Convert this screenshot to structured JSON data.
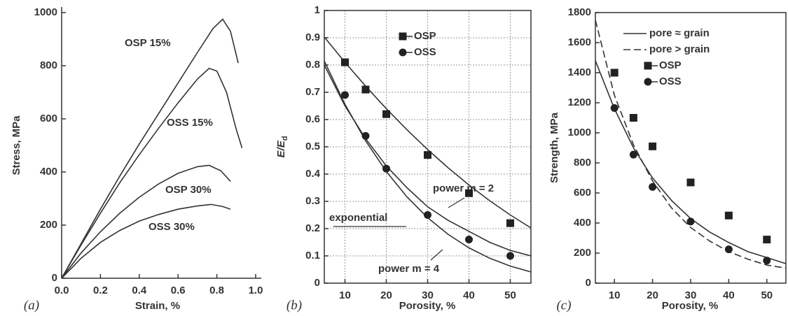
{
  "chart_data": [
    {
      "type": "line",
      "xlabel": "Strain, %",
      "ylabel": "Stress, MPa",
      "panel_label": "(a)",
      "xlim": [
        0,
        1
      ],
      "ylim": [
        0,
        1000
      ],
      "xticks": [
        {
          "value": 0,
          "label": "0.0"
        },
        0.2,
        0.4,
        0.6,
        0.8,
        {
          "value": 1,
          "label": "1.0"
        }
      ],
      "yticks": [
        0,
        200,
        400,
        600,
        800,
        1000
      ],
      "series": [
        {
          "name": "OSP 15%",
          "color": "#333333",
          "x": [
            0,
            0.1,
            0.2,
            0.3,
            0.4,
            0.5,
            0.6,
            0.7,
            0.78,
            0.83,
            0.87,
            0.91
          ],
          "values": [
            0,
            130,
            260,
            385,
            505,
            620,
            735,
            850,
            940,
            975,
            930,
            810
          ]
        },
        {
          "name": "OSS 15%",
          "color": "#333333",
          "x": [
            0,
            0.1,
            0.2,
            0.3,
            0.4,
            0.5,
            0.6,
            0.7,
            0.76,
            0.8,
            0.85,
            0.9,
            0.93
          ],
          "values": [
            0,
            125,
            245,
            360,
            465,
            565,
            660,
            750,
            790,
            780,
            700,
            560,
            490
          ]
        },
        {
          "name": "OSP 30%",
          "color": "#333333",
          "x": [
            0,
            0.1,
            0.2,
            0.3,
            0.4,
            0.5,
            0.6,
            0.7,
            0.76,
            0.82,
            0.87
          ],
          "values": [
            0,
            95,
            175,
            245,
            305,
            355,
            395,
            420,
            425,
            405,
            365
          ]
        },
        {
          "name": "OSS 30%",
          "color": "#333333",
          "x": [
            0,
            0.1,
            0.2,
            0.3,
            0.4,
            0.5,
            0.6,
            0.7,
            0.77,
            0.83,
            0.87
          ],
          "values": [
            0,
            75,
            135,
            180,
            215,
            240,
            260,
            272,
            278,
            270,
            260
          ]
        }
      ]
    },
    {
      "type": "scatter",
      "xlabel": "Porosity, %",
      "ylabel": "E/E",
      "ylabel_subscript": "d",
      "panel_label": "(b)",
      "xlim": [
        5,
        55
      ],
      "ylim": [
        0,
        1
      ],
      "grid": true,
      "xticks": [
        10,
        20,
        30,
        40,
        50
      ],
      "yticks": [
        0,
        0.1,
        0.2,
        0.3,
        0.4,
        0.5,
        0.6,
        0.7,
        0.8,
        0.9,
        1
      ],
      "series": [
        {
          "name": "OSP",
          "marker": "square",
          "color": "#222222",
          "x": [
            10,
            15,
            20,
            30,
            40,
            50
          ],
          "values": [
            0.81,
            0.71,
            0.62,
            0.47,
            0.33,
            0.22
          ]
        },
        {
          "name": "OSS",
          "marker": "circle",
          "color": "#222222",
          "x": [
            10,
            15,
            20,
            30,
            40,
            50
          ],
          "values": [
            0.69,
            0.54,
            0.42,
            0.25,
            0.16,
            0.1
          ]
        }
      ],
      "curves": [
        {
          "name": "power m = 2",
          "color": "#333333",
          "x": [
            5,
            10,
            15,
            20,
            25,
            30,
            35,
            40,
            45,
            50,
            55
          ],
          "values": [
            0.9025,
            0.81,
            0.7225,
            0.64,
            0.5625,
            0.49,
            0.4225,
            0.36,
            0.3025,
            0.25,
            0.2025
          ]
        },
        {
          "name": "exponential",
          "color": "#333333",
          "x": [
            5,
            10,
            15,
            20,
            25,
            30,
            35,
            40,
            45,
            50,
            55
          ],
          "values": [
            0.8,
            0.65,
            0.53,
            0.43,
            0.35,
            0.28,
            0.23,
            0.19,
            0.15,
            0.12,
            0.1
          ]
        },
        {
          "name": "power m = 4",
          "color": "#333333",
          "x": [
            5,
            10,
            15,
            20,
            25,
            30,
            35,
            40,
            45,
            50,
            55
          ],
          "values": [
            0.8145,
            0.6561,
            0.522,
            0.4096,
            0.3164,
            0.2401,
            0.1785,
            0.1296,
            0.0915,
            0.0625,
            0.041
          ]
        }
      ]
    },
    {
      "type": "scatter",
      "xlabel": "Porosity, %",
      "ylabel": "Strength, MPa",
      "panel_label": "(c)",
      "xlim": [
        5,
        55
      ],
      "ylim": [
        0,
        1800
      ],
      "legend": "upper right",
      "xticks": [
        10,
        20,
        30,
        40,
        50
      ],
      "yticks": [
        0,
        200,
        400,
        600,
        800,
        1000,
        1200,
        1400,
        1600,
        1800
      ],
      "curves": [
        {
          "name": "pore ≈ grain",
          "dash": "solid",
          "color": "#333333",
          "x": [
            5,
            10,
            15,
            20,
            25,
            30,
            35,
            40,
            45,
            50,
            55
          ],
          "values": [
            1480,
            1160,
            900,
            700,
            550,
            430,
            340,
            270,
            210,
            170,
            130
          ]
        },
        {
          "name": "pore > grain",
          "dash": "dashed",
          "color": "#333333",
          "x": [
            5,
            10,
            15,
            20,
            25,
            30,
            35,
            40,
            45,
            50,
            55
          ],
          "values": [
            1750,
            1250,
            920,
            680,
            500,
            370,
            280,
            210,
            160,
            120,
            100
          ]
        }
      ],
      "series": [
        {
          "name": "OSP",
          "marker": "square",
          "color": "#222222",
          "x": [
            10,
            15,
            20,
            30,
            40,
            50
          ],
          "values": [
            1400,
            1100,
            910,
            670,
            450,
            290
          ]
        },
        {
          "name": "OSS",
          "marker": "circle",
          "color": "#222222",
          "x": [
            10,
            15,
            20,
            30,
            40,
            50
          ],
          "values": [
            1165,
            855,
            640,
            410,
            225,
            150
          ]
        }
      ]
    }
  ]
}
